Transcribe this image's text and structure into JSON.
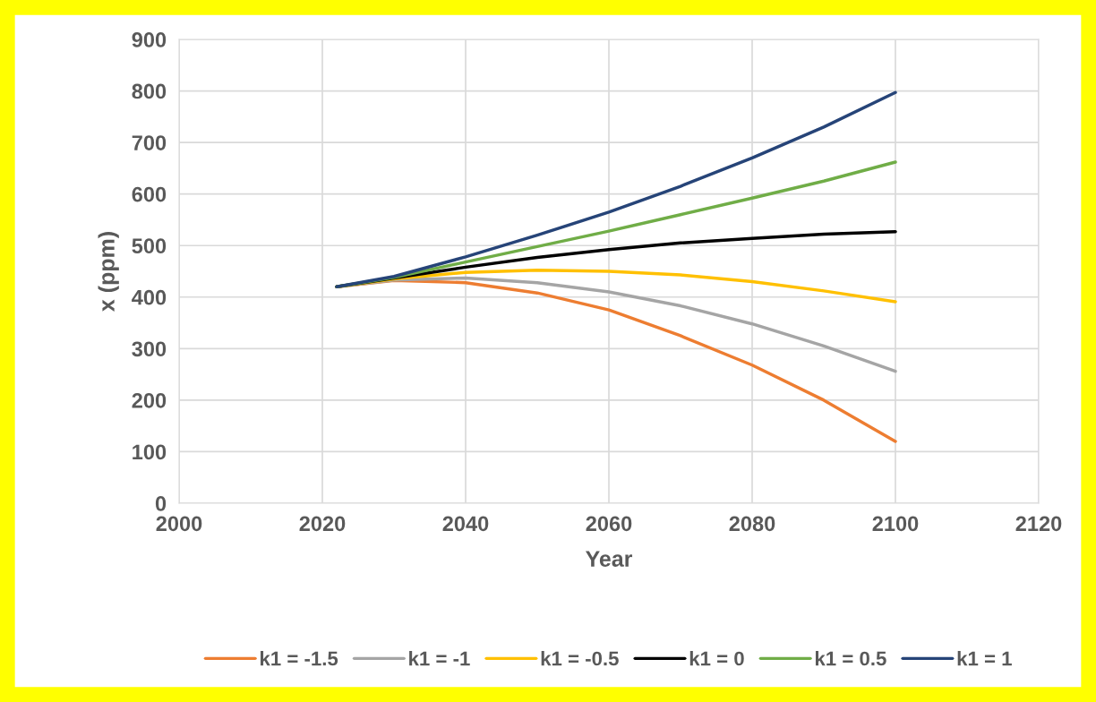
{
  "chart_data": {
    "type": "line",
    "xlabel": "Year",
    "ylabel": "x (ppm)",
    "x": [
      2022,
      2030,
      2040,
      2050,
      2060,
      2070,
      2080,
      2090,
      2100
    ],
    "series": [
      {
        "name": "k1 = -1.5",
        "color": "#ed7d31",
        "values": [
          420,
          432,
          428,
          408,
          375,
          325,
          268,
          200,
          120
        ]
      },
      {
        "name": "k1 = -1",
        "color": "#a5a5a5",
        "values": [
          420,
          433,
          437,
          428,
          410,
          383,
          348,
          305,
          256
        ]
      },
      {
        "name": "k1 = -0.5",
        "color": "#ffc000",
        "values": [
          420,
          435,
          448,
          452,
          450,
          443,
          430,
          412,
          391
        ]
      },
      {
        "name": "k1 = 0",
        "color": "#000000",
        "values": [
          420,
          437,
          458,
          477,
          492,
          505,
          514,
          522,
          527
        ]
      },
      {
        "name": "k1 = 0.5",
        "color": "#70ad47",
        "values": [
          420,
          438,
          468,
          498,
          528,
          560,
          592,
          625,
          662
        ]
      },
      {
        "name": "k1 = 1",
        "color": "#264478",
        "values": [
          420,
          440,
          478,
          520,
          565,
          615,
          670,
          730,
          797
        ]
      }
    ],
    "xlim": [
      2000,
      2120
    ],
    "xticks": [
      2000,
      2020,
      2040,
      2060,
      2080,
      2100,
      2120
    ],
    "ylim": [
      0,
      900
    ],
    "yticks": [
      0,
      100,
      200,
      300,
      400,
      500,
      600,
      700,
      800,
      900
    ],
    "grid": true,
    "legend": "bottom",
    "marker": "none",
    "line_style": "solid"
  }
}
